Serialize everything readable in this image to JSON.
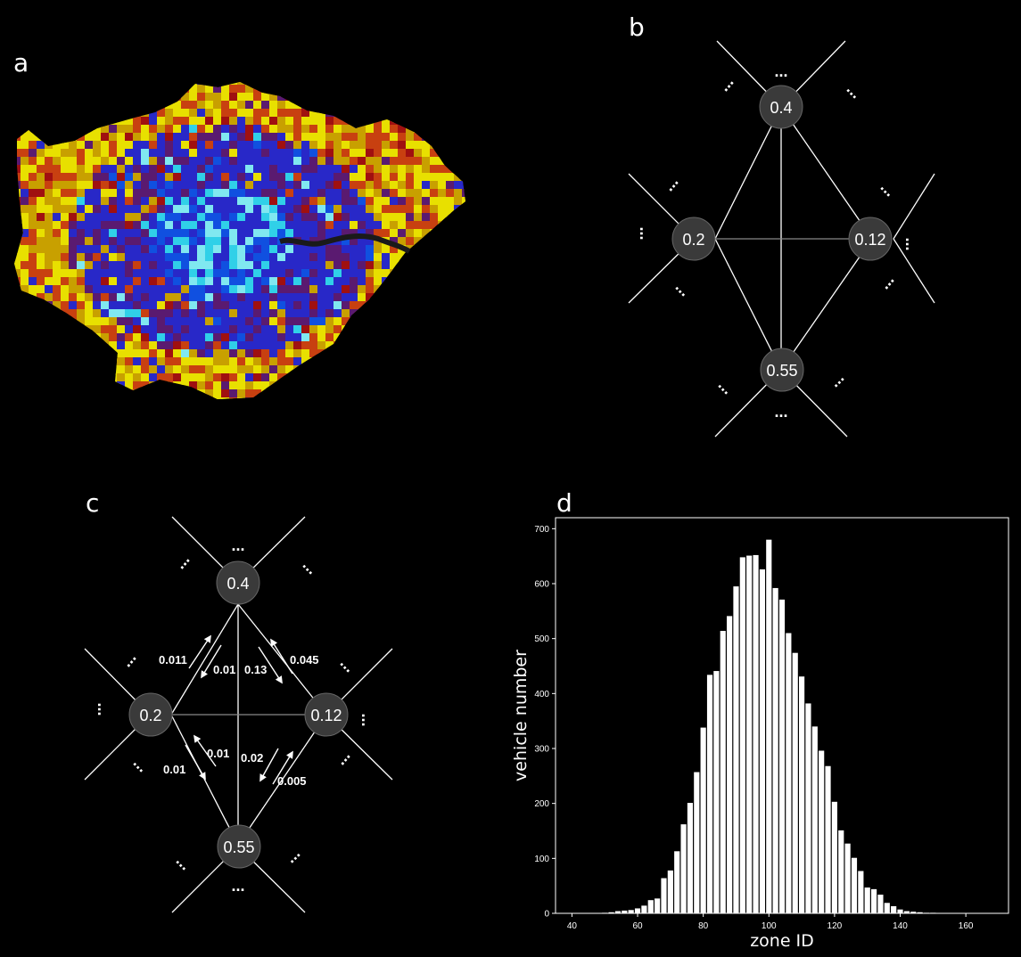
{
  "labels": {
    "a": "a",
    "b": "b",
    "c": "c",
    "d": "d"
  },
  "colors": {
    "background": "#000000",
    "node_fill": "#3a3a3a",
    "edge": "#ffffff",
    "map_palette": [
      "#e8e000",
      "#c8a000",
      "#c84010",
      "#a01010",
      "#5a1a70",
      "#2828c8",
      "#1050e0",
      "#30d0e8",
      "#80e8f0"
    ]
  },
  "graph_b": {
    "nodes": {
      "top": "0.4",
      "left": "0.2",
      "right": "0.12",
      "bottom": "0.55"
    },
    "ellipsis": "..."
  },
  "graph_c": {
    "nodes": {
      "top": "0.4",
      "left": "0.2",
      "right": "0.12",
      "bottom": "0.55"
    },
    "ellipsis": "...",
    "edge_labels": {
      "left_top_up": "0.011",
      "left_top_down": "0.01",
      "top_right_down": "0.13",
      "top_right_up": "0.045",
      "left_bottom_up": "0.01",
      "left_bottom_down": "0.01",
      "bottom_right_down": "0.02",
      "bottom_right_up": "0.005"
    }
  },
  "chart_data": {
    "type": "bar",
    "xlabel": "zone ID",
    "ylabel": "vehicle number",
    "xlim": [
      35,
      173
    ],
    "ylim": [
      0,
      720
    ],
    "xticks": [
      40,
      60,
      80,
      100,
      120,
      140,
      160
    ],
    "yticks": [
      0,
      100,
      200,
      300,
      400,
      500,
      600,
      700
    ],
    "x": [
      44,
      46,
      48,
      50,
      52,
      54,
      56,
      58,
      60,
      62,
      64,
      66,
      68,
      70,
      72,
      74,
      76,
      78,
      80,
      82,
      84,
      86,
      88,
      90,
      92,
      94,
      96,
      98,
      100,
      102,
      104,
      106,
      108,
      110,
      112,
      114,
      116,
      118,
      120,
      122,
      124,
      126,
      128,
      130,
      132,
      134,
      136,
      138,
      140,
      142,
      144,
      146,
      148,
      150,
      152,
      154,
      156,
      158,
      160,
      162,
      164
    ],
    "values": [
      0,
      0,
      0,
      1,
      2,
      4,
      5,
      6,
      9,
      14,
      24,
      27,
      64,
      78,
      113,
      162,
      201,
      257,
      338,
      434,
      441,
      514,
      541,
      595,
      648,
      651,
      652,
      626,
      680,
      592,
      571,
      510,
      474,
      431,
      382,
      340,
      296,
      268,
      203,
      151,
      127,
      101,
      77,
      47,
      44,
      34,
      19,
      13,
      7,
      4,
      3,
      2,
      1,
      1,
      0,
      0,
      0,
      0,
      0,
      0,
      0
    ]
  }
}
